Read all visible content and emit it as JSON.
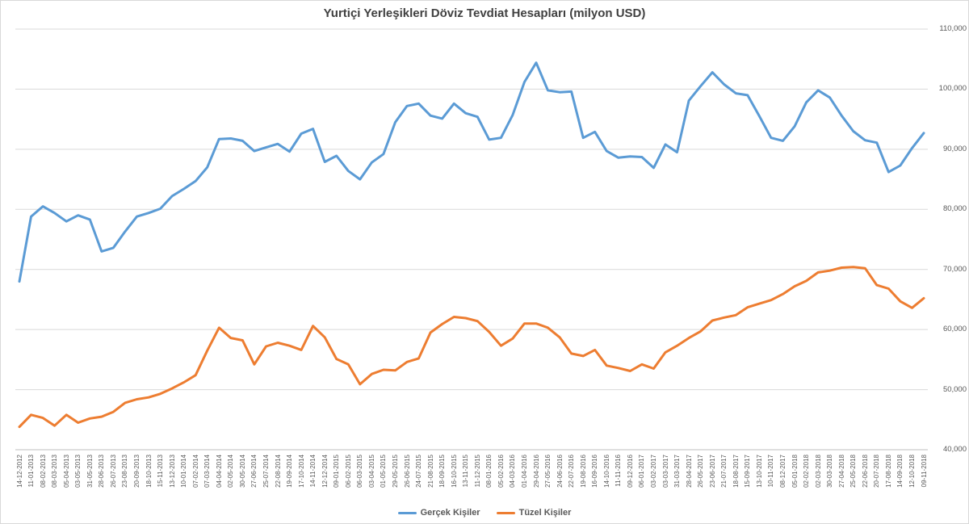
{
  "title": "Yurtiçi Yerleşikleri Döviz Tevdiat Hesapları (milyon USD)",
  "colors": {
    "series1": "#5B9BD5",
    "series2": "#ED7D31",
    "gridline": "#D9D9D9",
    "axis_line": "#BFBFBF",
    "title_text": "#404040",
    "axis_text": "#595959"
  },
  "chart_data": {
    "type": "line",
    "title": "Yurtiçi Yerleşikleri Döviz Tevdiat Hesapları (milyon USD)",
    "xlabel": "",
    "ylabel": "",
    "ylim": [
      40000,
      110000
    ],
    "grid": "horizontal",
    "legend_position": "bottom",
    "y_axis_side": "right",
    "x_label_rotation": -90,
    "y_ticks": [
      {
        "value": 110000,
        "label": "110,000"
      },
      {
        "value": 100000,
        "label": "100,000"
      },
      {
        "value": 90000,
        "label": "90,000"
      },
      {
        "value": 80000,
        "label": "80,000"
      },
      {
        "value": 70000,
        "label": "70,000"
      },
      {
        "value": 60000,
        "label": "60,000"
      },
      {
        "value": 50000,
        "label": "50,000"
      },
      {
        "value": 40000,
        "label": "40,000"
      }
    ],
    "x": [
      "14-12-2012",
      "11-01-2013",
      "08-02-2013",
      "08-03-2013",
      "05-04-2013",
      "03-05-2013",
      "31-05-2013",
      "28-06-2013",
      "26-07-2013",
      "23-08-2013",
      "20-09-2013",
      "18-10-2013",
      "15-11-2013",
      "13-12-2013",
      "10-01-2014",
      "07-02-2014",
      "07-03-2014",
      "04-04-2014",
      "02-05-2014",
      "30-05-2014",
      "27-06-2014",
      "25-07-2014",
      "22-08-2014",
      "19-09-2014",
      "17-10-2014",
      "14-11-2014",
      "12-12-2014",
      "09-01-2015",
      "06-02-2015",
      "06-03-2015",
      "03-04-2015",
      "01-05-2015",
      "29-05-2015",
      "26-06-2015",
      "24-07-2015",
      "21-08-2015",
      "18-09-2015",
      "16-10-2015",
      "13-11-2015",
      "11-12-2015",
      "08-01-2016",
      "05-02-2016",
      "04-03-2016",
      "01-04-2016",
      "29-04-2016",
      "27-05-2016",
      "24-06-2016",
      "22-07-2016",
      "19-08-2016",
      "16-09-2016",
      "14-10-2016",
      "11-11-2016",
      "09-12-2016",
      "06-01-2017",
      "03-02-2017",
      "03-03-2017",
      "31-03-2017",
      "28-04-2017",
      "26-05-2017",
      "23-06-2017",
      "21-07-2017",
      "18-08-2017",
      "15-09-2017",
      "13-10-2017",
      "10-11-2017",
      "08-12-2017",
      "05-01-2018",
      "02-02-2018",
      "02-03-2018",
      "30-03-2018",
      "27-04-2018",
      "25-05-2018",
      "22-06-2018",
      "20-07-2018",
      "17-08-2018",
      "14-09-2018",
      "12-10-2018",
      "09-11-2018"
    ],
    "series": [
      {
        "name": "Gerçek Kişiler",
        "color": "#5B9BD5",
        "values": [
          68000,
          78800,
          80500,
          79400,
          78000,
          79000,
          78300,
          73000,
          73600,
          76300,
          78800,
          79400,
          80100,
          82200,
          83400,
          84700,
          87000,
          91700,
          91800,
          91400,
          89700,
          90300,
          90900,
          89600,
          92600,
          93400,
          87900,
          88900,
          86400,
          85000,
          87800,
          89200,
          94500,
          97200,
          97600,
          95600,
          95100,
          97600,
          96000,
          95400,
          91600,
          91900,
          95700,
          101200,
          104400,
          99800,
          99500,
          99600,
          91900,
          92900,
          89700,
          88600,
          88800,
          88700,
          86900,
          90800,
          89500,
          98100,
          100500,
          102800,
          100800,
          99300,
          99000,
          95500,
          91900,
          91400,
          93800,
          97800,
          99800,
          98600,
          95600,
          93000,
          91500,
          91100,
          86200,
          87300,
          90200,
          92700
        ]
      },
      {
        "name": "Tüzel Kişiler",
        "color": "#ED7D31",
        "values": [
          43800,
          45800,
          45300,
          44000,
          45800,
          44500,
          45200,
          45500,
          46300,
          47800,
          48400,
          48700,
          49300,
          50200,
          51200,
          52400,
          56500,
          60300,
          58600,
          58200,
          54200,
          57200,
          57800,
          57300,
          56600,
          60600,
          58700,
          55100,
          54200,
          50900,
          52600,
          53300,
          53200,
          54600,
          55200,
          59500,
          60900,
          62100,
          61900,
          61400,
          59600,
          57300,
          58500,
          61000,
          61000,
          60300,
          58700,
          56000,
          55600,
          56600,
          54000,
          53600,
          53100,
          54200,
          53500,
          56200,
          57300,
          58600,
          59700,
          61500,
          62000,
          62400,
          63700,
          64300,
          64900,
          65900,
          67200,
          68100,
          69500,
          69800,
          70300,
          70400,
          70200,
          67400,
          66800,
          64700,
          63600,
          65200
        ]
      }
    ]
  },
  "legend": {
    "item1": "Gerçek Kişiler",
    "item2": "Tüzel Kişiler"
  }
}
